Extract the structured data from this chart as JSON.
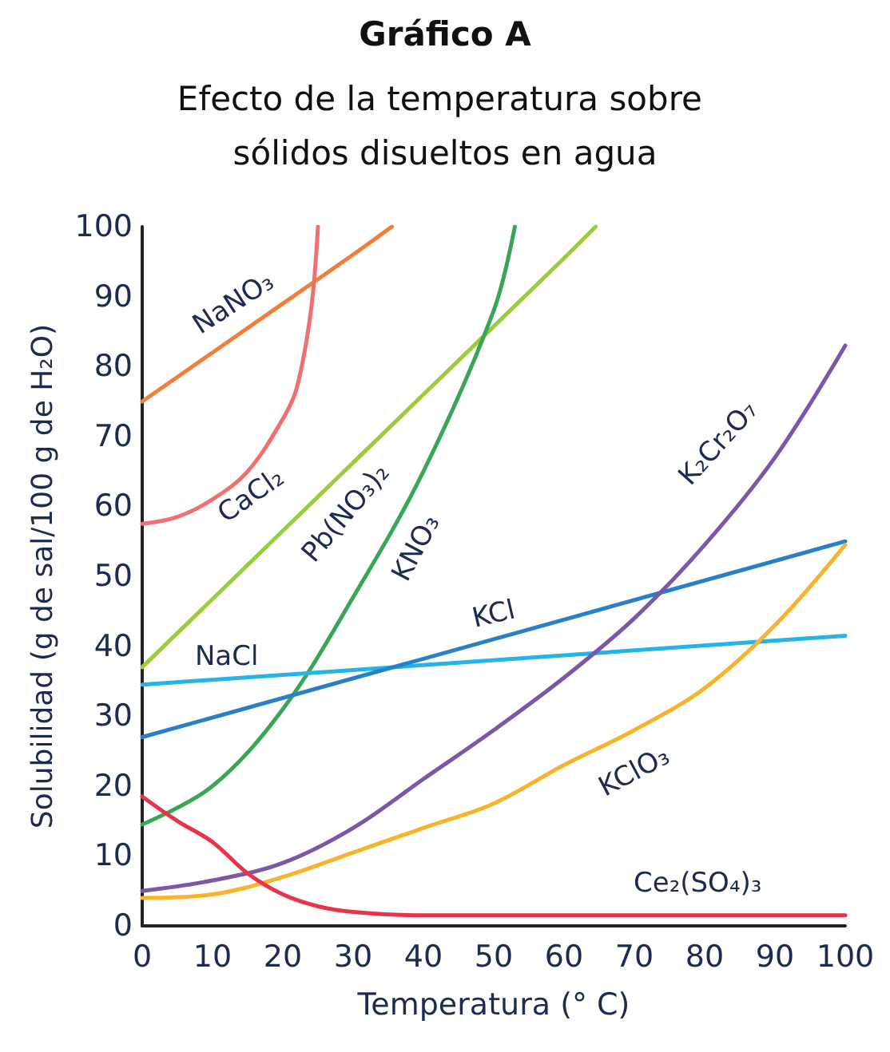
{
  "chart_data": {
    "type": "line",
    "title": "Gráfico A",
    "subtitle": "Efecto de la temperatura sobre sólidos disueltos en agua",
    "xlabel": "Temperatura (° C)",
    "ylabel": "Solubilidad (g de sal/100 g de H₂O)",
    "xlim": [
      0,
      100
    ],
    "xticks": [
      0,
      10,
      20,
      30,
      40,
      50,
      60,
      70,
      80,
      90,
      100
    ],
    "ylim": [
      0,
      100
    ],
    "yticks": [
      0,
      10,
      20,
      30,
      40,
      50,
      60,
      70,
      80,
      90,
      100
    ],
    "grid": false,
    "legend": false,
    "marker": "none",
    "line_style": "solid",
    "series": [
      {
        "name": "NaNO₃",
        "color": "#f07f3c",
        "x": [
          0,
          10,
          20,
          30,
          35.5
        ],
        "values": [
          75,
          82,
          89,
          96,
          100
        ]
      },
      {
        "name": "CaCl₂",
        "color": "#f07070",
        "x": [
          0,
          5,
          10,
          15,
          20,
          22,
          24,
          25
        ],
        "values": [
          57.5,
          58.5,
          61,
          65,
          72.5,
          77,
          88,
          100
        ]
      },
      {
        "name": "Pb(NO₃)₂",
        "color": "#9ccc3c",
        "x": [
          0,
          20,
          40,
          60,
          64.5
        ],
        "values": [
          37,
          56.5,
          76,
          95.5,
          100
        ]
      },
      {
        "name": "KNO₃",
        "color": "#3aa655",
        "x": [
          0,
          10,
          20,
          30,
          40,
          50,
          53
        ],
        "values": [
          14.5,
          20,
          31,
          47,
          65,
          88,
          100
        ]
      },
      {
        "name": "NaCl",
        "color": "#25b4e8",
        "x": [
          0,
          100
        ],
        "values": [
          34.5,
          41.5
        ]
      },
      {
        "name": "KCl",
        "color": "#2880c8",
        "x": [
          0,
          100
        ],
        "values": [
          27,
          55
        ]
      },
      {
        "name": "K₂Cr₂O₇",
        "color": "#7b58a6",
        "x": [
          0,
          10,
          20,
          30,
          40,
          50,
          60,
          70,
          80,
          90,
          100
        ],
        "values": [
          5,
          6.5,
          9,
          14,
          21,
          28,
          35.5,
          44,
          54.5,
          67,
          83
        ]
      },
      {
        "name": "KClO₃",
        "color": "#f7b32b",
        "x": [
          0,
          10,
          20,
          30,
          40,
          50,
          60,
          70,
          80,
          90,
          100
        ],
        "values": [
          4,
          4.5,
          7,
          10.5,
          14,
          17.5,
          23,
          28,
          34,
          43,
          54.5
        ]
      },
      {
        "name": "Ce₂(SO₄)₃",
        "color": "#e8344a",
        "x": [
          0,
          5,
          10,
          15,
          20,
          25,
          30,
          40,
          100
        ],
        "values": [
          18.5,
          15,
          12,
          7.5,
          4.5,
          2.8,
          2,
          1.5,
          1.5
        ]
      }
    ]
  }
}
